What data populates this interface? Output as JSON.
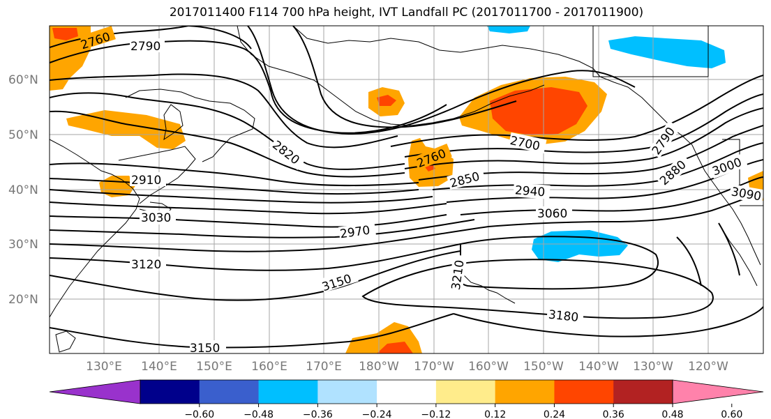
{
  "title": "2017011400 F114 700 hPa height, IVT Landfall PC (2017011700 - 2017011900)",
  "lat_labels": [
    "60°N",
    "50°N",
    "40°N",
    "30°N",
    "20°N"
  ],
  "lon_labels": [
    "130°E",
    "140°E",
    "150°E",
    "160°E",
    "170°E",
    "180°W",
    "170°W",
    "160°W",
    "150°W",
    "140°W",
    "130°W",
    "120°W"
  ],
  "contour_labels": [
    "2760",
    "2790",
    "2910",
    "3030",
    "3120",
    "3150",
    "2820",
    "2760",
    "2850",
    "2970",
    "3150",
    "2700",
    "2940",
    "3060",
    "3210",
    "3180",
    "2790",
    "2880",
    "3000",
    "3090"
  ],
  "colorbar": {
    "ticks": [
      "−0.60",
      "−0.48",
      "−0.36",
      "−0.24",
      "−0.12",
      "0.12",
      "0.24",
      "0.36",
      "0.48",
      "0.60"
    ],
    "colors": [
      "#9932cc",
      "#00008b",
      "#3a5fcd",
      "#00bfff",
      "#b0e2ff",
      "#ffffff",
      "#ffec8b",
      "#ffa500",
      "#ff4500",
      "#b22222",
      "#ff82ab"
    ]
  },
  "palette": {
    "orange": "#ffa500",
    "red_orange": "#ff4500",
    "light_yellow": "#ffec8b",
    "deep_sky_blue": "#00bfff",
    "light_blue": "#b0e2ff"
  }
}
